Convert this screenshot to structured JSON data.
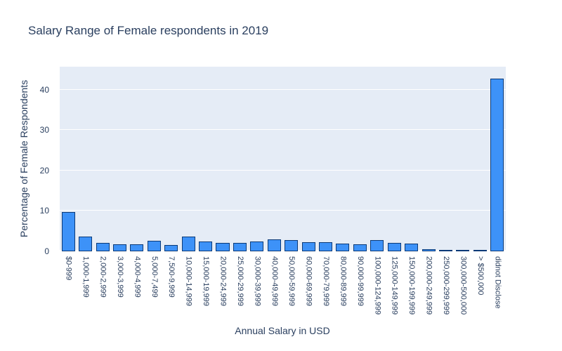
{
  "title": "Salary Range of Female respondents in 2019",
  "chart_data": {
    "type": "bar",
    "title": "Salary Range of Female respondents in 2019",
    "xlabel": "Annual Salary in USD",
    "ylabel": "Percentage of Female Respondents",
    "ylim": [
      0,
      45.7
    ],
    "yticks": [
      0,
      10,
      20,
      30,
      40
    ],
    "grid": true,
    "legend": "none",
    "categories": [
      "$0-999",
      "1,000-1,999",
      "2,000-2,999",
      "3,000-3,999",
      "4,000-4,999",
      "5,000-7,499",
      "7,500-9,999",
      "10,000-14,999",
      "15,000-19,999",
      "20,000-24,999",
      "25,000-29,999",
      "30,000-39,999",
      "40,000-49,999",
      "50,000-59,999",
      "60,000-69,999",
      "70,000-79,999",
      "80,000-89,999",
      "90,000-99,999",
      "100,000-124,999",
      "125,000-149,999",
      "150,000-199,999",
      "200,000-249,999",
      "250,000-299,999",
      "300,000-500,000",
      "> $500,000",
      "didnot Disclose"
    ],
    "values": [
      9.8,
      3.7,
      2.1,
      1.7,
      1.7,
      2.6,
      1.6,
      3.7,
      2.4,
      2.1,
      2.1,
      2.5,
      3.0,
      2.8,
      2.3,
      2.3,
      1.9,
      1.7,
      2.8,
      2.1,
      1.9,
      0.5,
      0.2,
      0.35,
      0.1,
      42.8
    ],
    "colors": {
      "bar_fill": "#3d92f8",
      "bar_border": "#0b3a77",
      "plot_background": "#e5ecf6",
      "grid_color": "#ffffff",
      "text_color": "#2a3f5f",
      "paper_background": "#ffffff"
    }
  }
}
